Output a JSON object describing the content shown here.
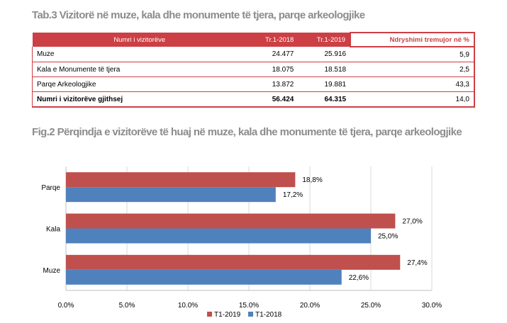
{
  "table_title": "Tab.3 Vizitorë në muze, kala dhe monumente të tjera, parqe arkeologjike",
  "table": {
    "headers": [
      "Numri i vizitorëve",
      "Tr.1-2018",
      "Tr.1-2019",
      "Ndryshimi tremujor në %"
    ],
    "rows": [
      {
        "name": "Muze",
        "v2018": "24.477",
        "v2019": "25.916",
        "change": "5,9"
      },
      {
        "name": "Kala e Monumente të tjera",
        "v2018": "18.075",
        "v2019": "18.518",
        "change": "2,5"
      },
      {
        "name": "Parqe Arkeologjike",
        "v2018": "13.872",
        "v2019": "19.881",
        "change": "43,3"
      }
    ],
    "total": {
      "name": "Numri i vizitorëve gjithsej",
      "v2018": "56.424",
      "v2019": "64.315",
      "change": "14,0"
    }
  },
  "figure_title": "Fig.2 Përqindja e vizitorëve të huaj në muze, kala dhe monumente të tjera, parqe arkeologjike",
  "chart_data": {
    "type": "bar",
    "orientation": "horizontal",
    "categories": [
      "Parqe",
      "Kala",
      "Muze"
    ],
    "series": [
      {
        "name": "T1-2019",
        "color": "#c0504d",
        "values": [
          18.8,
          27.0,
          27.4
        ],
        "labels": [
          "18,8%",
          "27,0%",
          "27,4%"
        ]
      },
      {
        "name": "T1-2018",
        "color": "#4f81bd",
        "values": [
          17.2,
          25.0,
          22.6
        ],
        "labels": [
          "17,2%",
          "25,0%",
          "22,6%"
        ]
      }
    ],
    "xlim": [
      0,
      30
    ],
    "xticks": [
      0,
      5,
      10,
      15,
      20,
      25,
      30
    ],
    "xtick_labels": [
      "0.0%",
      "5.0%",
      "10.0%",
      "15.0%",
      "20.0%",
      "25.0%",
      "30.0%"
    ],
    "grid": true,
    "legend_position": "bottom"
  }
}
